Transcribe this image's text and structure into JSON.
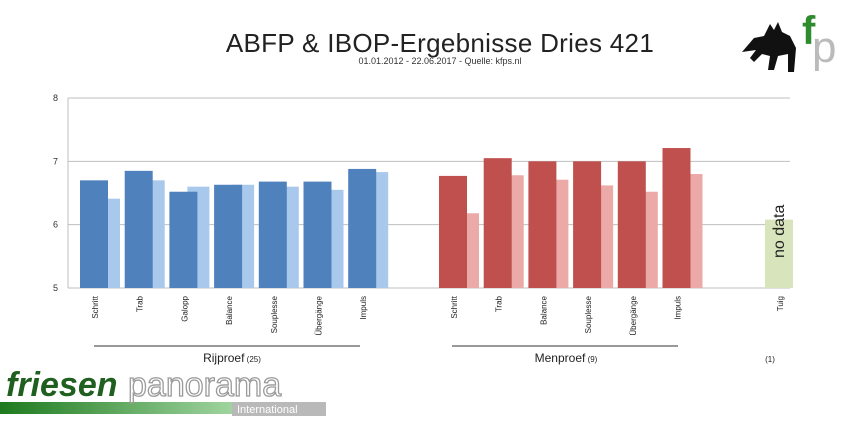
{
  "header": {
    "title": "ABFP & IBOP-Ergebnisse Dries 421",
    "subtitle": "01.01.2012 - 22.06.2017 - Quelle: kfps.nl"
  },
  "logo_top": {
    "text": "fp"
  },
  "logo_bottom": {
    "word1": "friesen",
    "word2": "panorama",
    "word3": "International"
  },
  "colors": {
    "blue_dark": "#4F81BD",
    "blue_light": "#A8C8EC",
    "red_dark": "#C0504D",
    "red_light": "#EBA9A8",
    "green_light": "#D7E4BC"
  },
  "chart_data": {
    "type": "bar",
    "title": "",
    "xlabel": "",
    "ylabel": "",
    "ylim": [
      5,
      8
    ],
    "yticks": [
      5,
      6,
      7,
      8
    ],
    "grid": true,
    "groups": [
      {
        "label": "Rijproef",
        "count": "(25)",
        "categories": [
          "Schritt",
          "Trab",
          "Galopp",
          "Balance",
          "Souplesse",
          "Übergänge",
          "Impuls"
        ],
        "series": [
          {
            "role": "dark",
            "values": [
              6.7,
              6.85,
              6.52,
              6.63,
              6.68,
              6.68,
              6.88
            ]
          },
          {
            "role": "light",
            "values": [
              6.41,
              6.7,
              6.6,
              6.63,
              6.6,
              6.55,
              6.83
            ]
          }
        ]
      },
      {
        "label": "Menproef",
        "count": "(9)",
        "categories": [
          "Schritt",
          "Trab",
          "Balance",
          "Souplesse",
          "Übergänge",
          "Impuls"
        ],
        "series": [
          {
            "role": "dark",
            "values": [
              6.77,
              7.05,
              7.0,
              7.0,
              7.0,
              7.21
            ]
          },
          {
            "role": "light",
            "values": [
              6.18,
              6.78,
              6.71,
              6.62,
              6.52,
              6.8
            ]
          }
        ]
      },
      {
        "label": "",
        "count": "(1)",
        "categories": [
          "Tuig"
        ],
        "annotation": "no data"
      }
    ]
  }
}
